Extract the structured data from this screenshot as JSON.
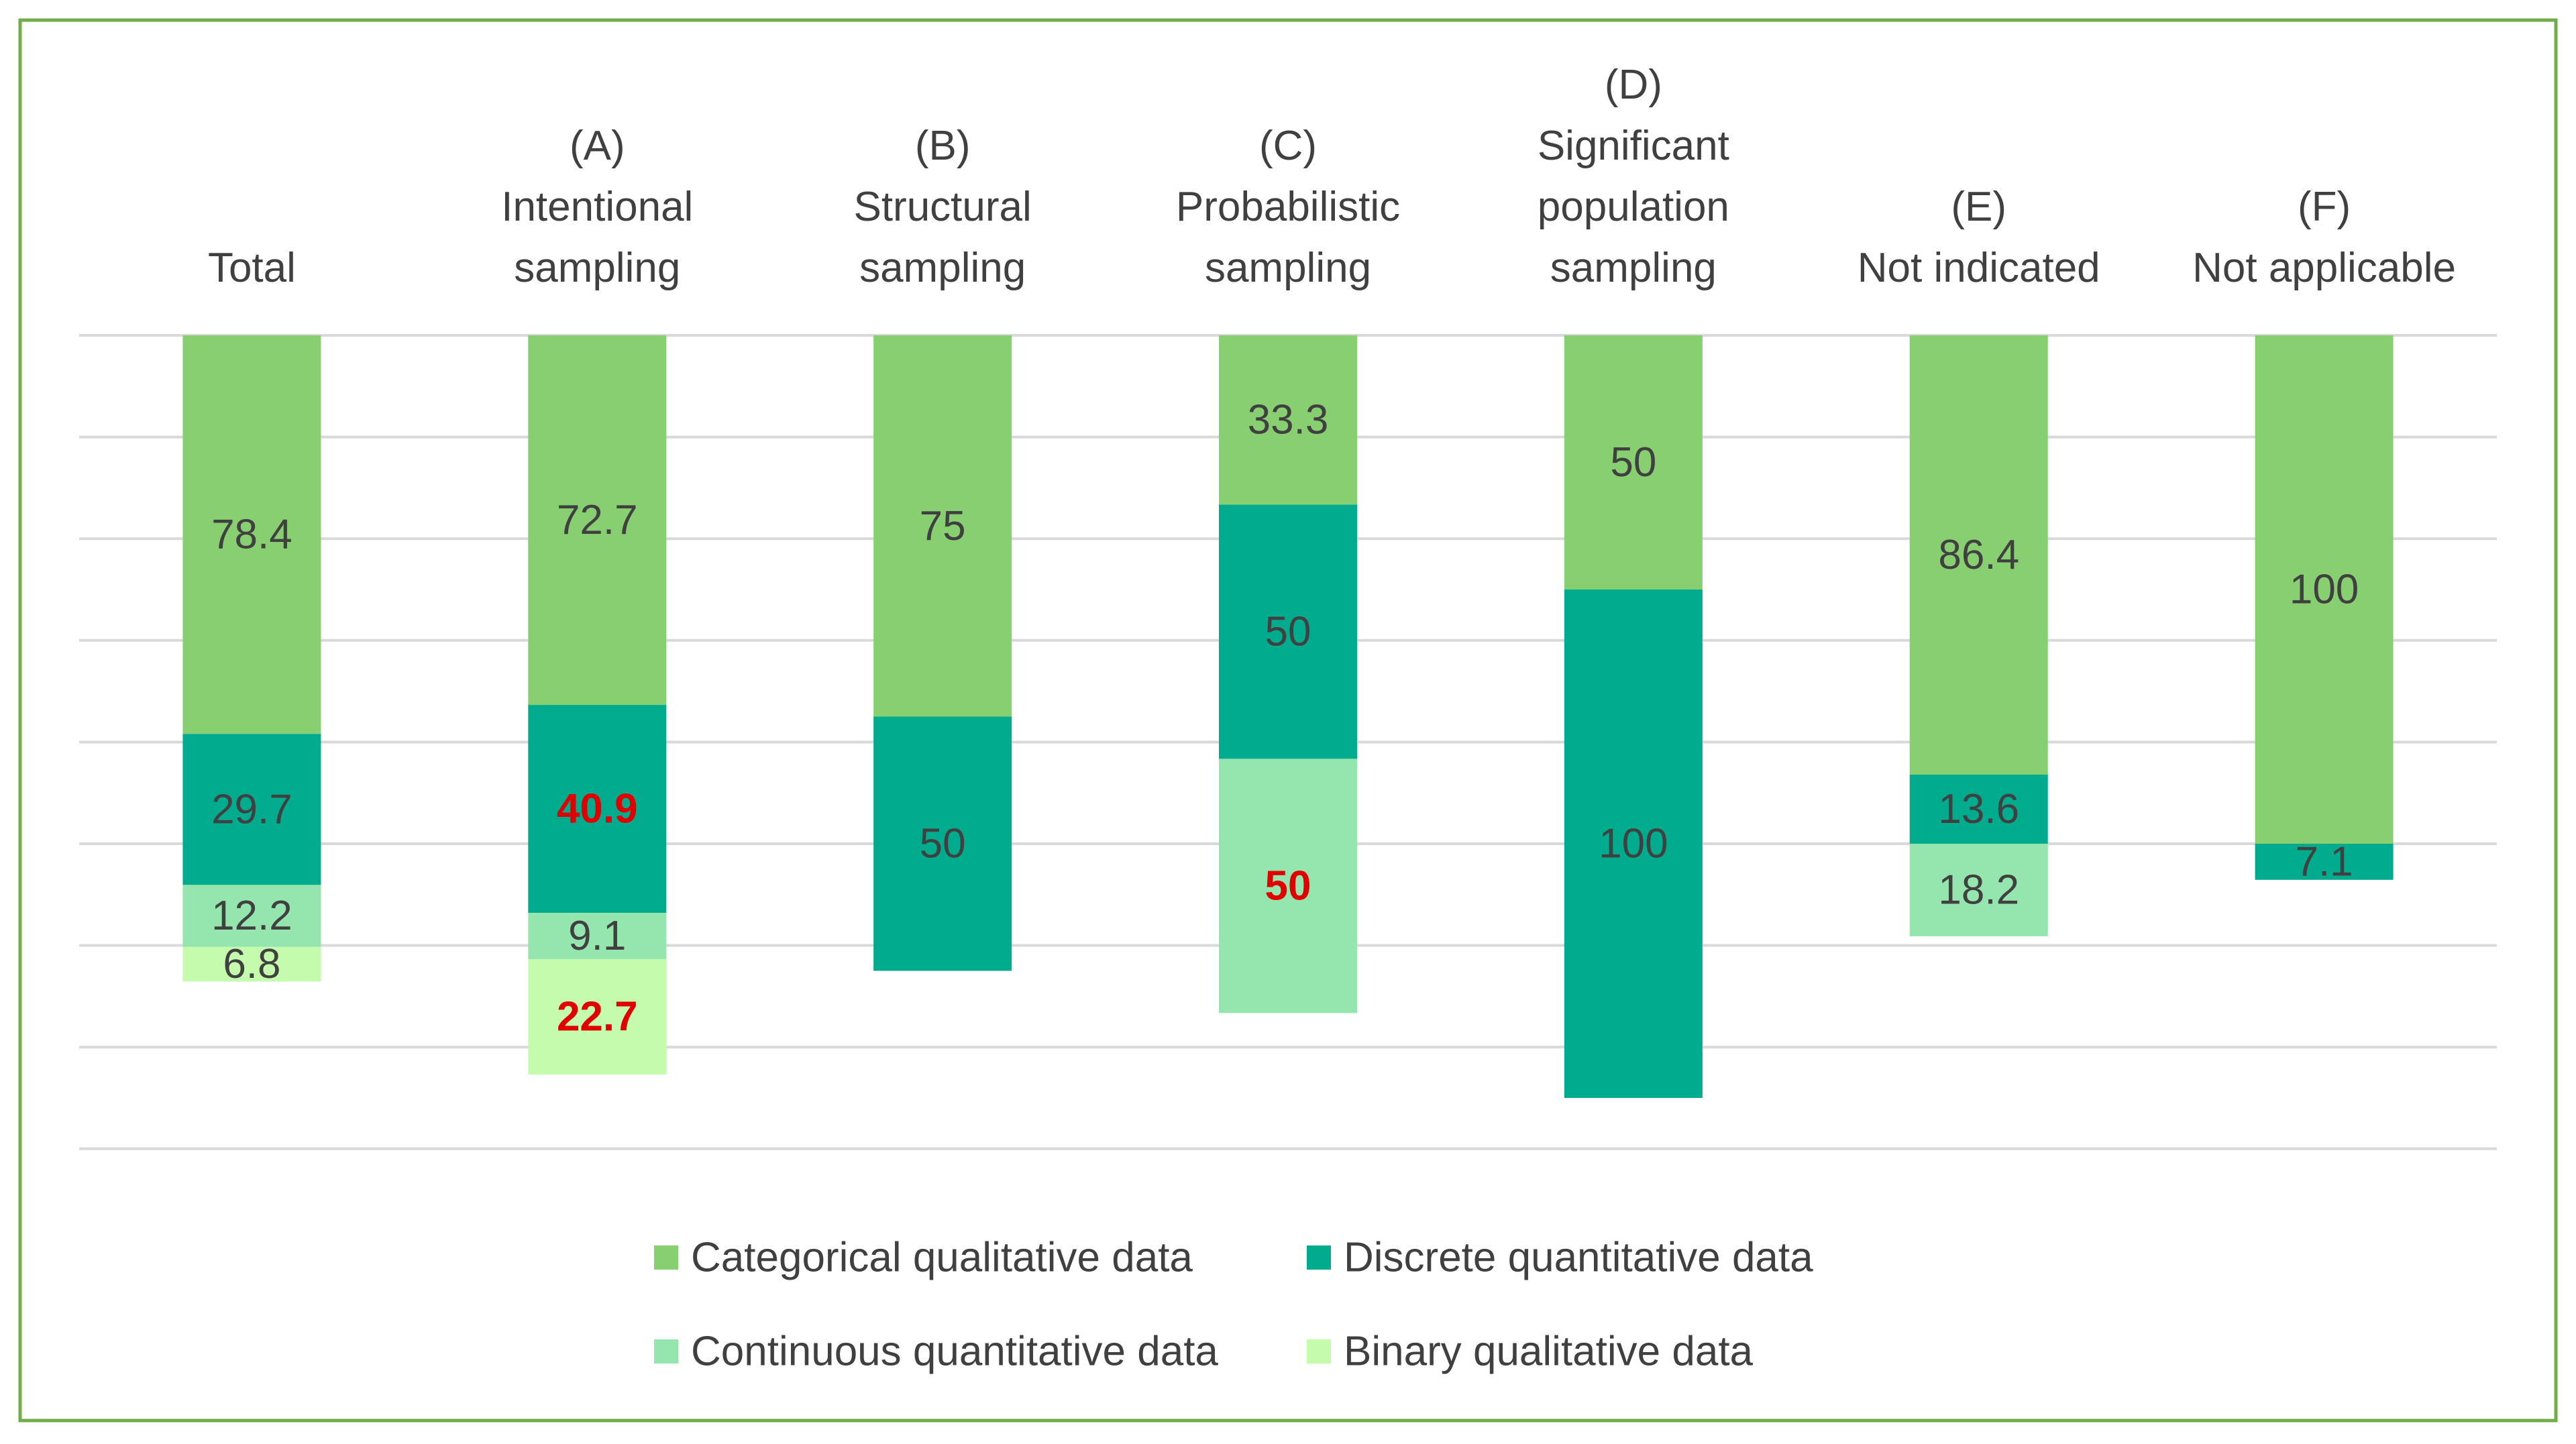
{
  "colors": {
    "frame": "#70ad47",
    "grid": "#d9d9d9",
    "text": "#404040",
    "highlight": "#e00000"
  },
  "chart_data": {
    "type": "bar",
    "stacked": true,
    "categories": [
      [
        "Total"
      ],
      [
        "(A)",
        "Intentional",
        "sampling"
      ],
      [
        "(B)",
        "Structural",
        "sampling"
      ],
      [
        "(C)",
        "Probabilistic",
        "sampling"
      ],
      [
        "(D)",
        "Significant",
        "population",
        "sampling"
      ],
      [
        "(E)",
        "Not indicated"
      ],
      [
        "(F)",
        "Not applicable"
      ]
    ],
    "series": [
      {
        "name": "Categorical qualitative data",
        "color": "#88cf72",
        "values": [
          78.4,
          72.7,
          75,
          33.3,
          50,
          86.4,
          100
        ]
      },
      {
        "name": "Discrete quantitative data",
        "color": "#00ab8e",
        "values": [
          29.7,
          40.9,
          50,
          50,
          100,
          13.6,
          7.1
        ]
      },
      {
        "name": "Continuous quantitative data",
        "color": "#95e6ae",
        "values": [
          12.2,
          9.1,
          null,
          50,
          null,
          18.2,
          null
        ]
      },
      {
        "name": "Binary qualitative data",
        "color": "#c5fbad",
        "values": [
          6.8,
          22.7,
          null,
          null,
          null,
          null,
          null
        ]
      }
    ],
    "highlighted": [
      {
        "series": 1,
        "category": 1
      },
      {
        "series": 3,
        "category": 1
      },
      {
        "series": 2,
        "category": 3
      }
    ],
    "y_axis": {
      "range": [
        0,
        160
      ],
      "direction": "downward",
      "gridline_step": 20,
      "tick_labels": false
    },
    "grid": true,
    "legend": {
      "position": "bottom",
      "columns": 2
    }
  }
}
